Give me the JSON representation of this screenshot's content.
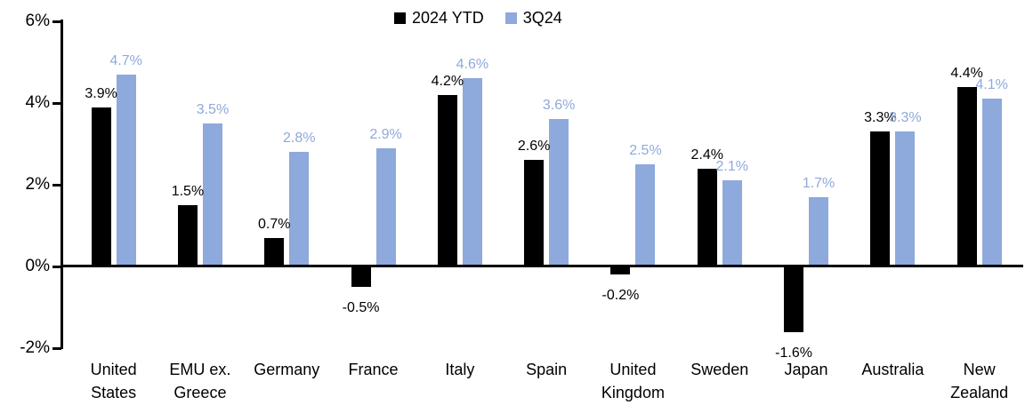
{
  "legend": {
    "items": [
      {
        "label": "2024 YTD",
        "color": "#000000"
      },
      {
        "label": "3Q24",
        "color": "#8EA9DB"
      }
    ]
  },
  "colors": {
    "series_2024_ytd": "#000000",
    "series_3q24": "#8EA9DB",
    "axis": "#000000",
    "background": "#FFFFFF"
  },
  "y_axis": {
    "ticks": [
      {
        "label": "6%",
        "value": 6
      },
      {
        "label": "4%",
        "value": 4
      },
      {
        "label": "2%",
        "value": 2
      },
      {
        "label": "0%",
        "value": 0
      },
      {
        "label": "-2%",
        "value": -2
      }
    ]
  },
  "chart_data": {
    "type": "bar",
    "title": "",
    "xlabel": "",
    "ylabel": "",
    "ylim": [
      -2,
      6
    ],
    "y_tick_step": 2,
    "grid": false,
    "legend_position": "top-center",
    "value_suffix": "%",
    "categories": [
      "United States",
      "EMU ex. Greece",
      "Germany",
      "France",
      "Italy",
      "Spain",
      "United Kingdom",
      "Sweden",
      "Japan",
      "Australia",
      "New Zealand"
    ],
    "series": [
      {
        "name": "2024 YTD",
        "color": "#000000",
        "label_color": "#000000",
        "values": [
          3.9,
          1.5,
          0.7,
          -0.5,
          4.2,
          2.6,
          -0.2,
          2.4,
          -1.6,
          3.3,
          4.4
        ],
        "labels": [
          "3.9%",
          "1.5%",
          "0.7%",
          "-0.5%",
          "4.2%",
          "2.6%",
          "-0.2%",
          "2.4%",
          "-1.6%",
          "3.3%",
          "4.4%"
        ]
      },
      {
        "name": "3Q24",
        "color": "#8EA9DB",
        "label_color": "#8EA9DB",
        "values": [
          4.7,
          3.5,
          2.8,
          2.9,
          4.6,
          3.6,
          2.5,
          2.1,
          1.7,
          3.3,
          4.1
        ],
        "labels": [
          "4.7%",
          "3.5%",
          "2.8%",
          "2.9%",
          "4.6%",
          "3.6%",
          "2.5%",
          "2.1%",
          "1.7%",
          "3.3%",
          "4.1%"
        ]
      }
    ]
  }
}
